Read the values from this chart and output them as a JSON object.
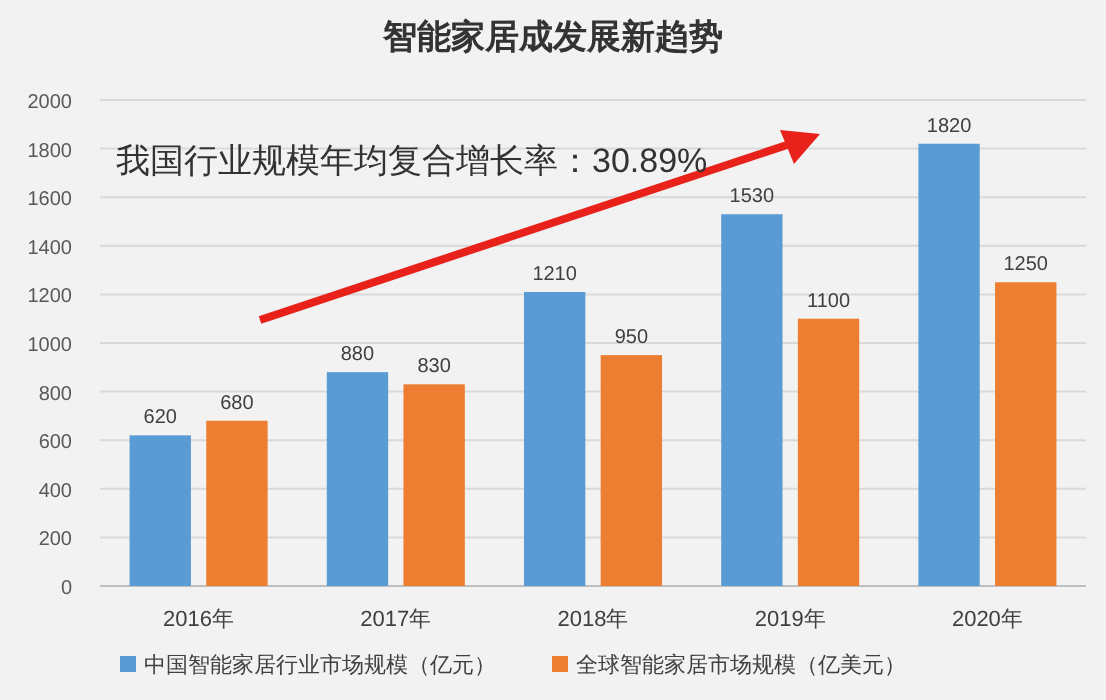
{
  "chart_data": {
    "type": "bar",
    "title": "智能家居成发展新趋势",
    "categories": [
      "2016年",
      "2017年",
      "2018年",
      "2019年",
      "2020年"
    ],
    "series": [
      {
        "name": "中国智能家居行业市场规模（亿元）",
        "color": "#5b9bd5",
        "values": [
          620,
          880,
          1210,
          1530,
          1820
        ]
      },
      {
        "name": "全球智能家居市场规模（亿美元）",
        "color": "#ed7d31",
        "values": [
          680,
          830,
          950,
          1100,
          1250
        ]
      }
    ],
    "ylim": [
      0,
      2000
    ],
    "yticks": [
      0,
      200,
      400,
      600,
      800,
      1000,
      1200,
      1400,
      1600,
      1800,
      2000
    ],
    "grid": "y",
    "legend": "bottom",
    "data_labels": true,
    "annotations": [
      "我国行业规模年均复合增长率：30.89%"
    ]
  }
}
